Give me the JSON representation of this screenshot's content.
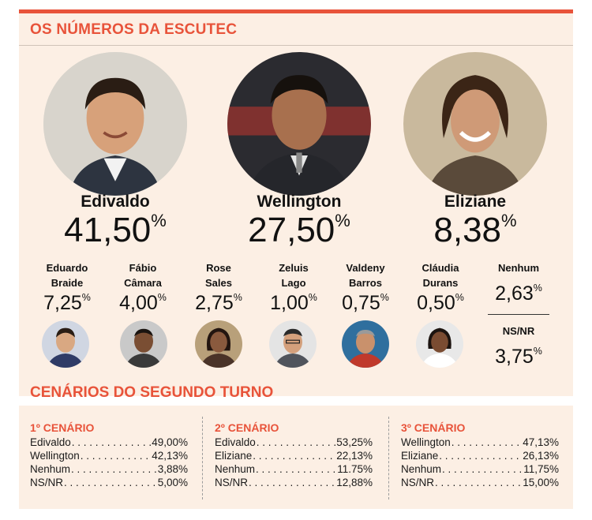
{
  "header": {
    "title": "OS NÚMEROS DA ESCUTEC"
  },
  "colors": {
    "accent": "#e8533a",
    "panel": "#fcefe4"
  },
  "main_candidates": [
    {
      "name": "Edivaldo",
      "value": "41,50",
      "unit": "%",
      "photo": "portrait-edivaldo"
    },
    {
      "name": "Wellington",
      "value": "27,50",
      "unit": "%",
      "photo": "portrait-wellington"
    },
    {
      "name": "Eliziane",
      "value": "8,38",
      "unit": "%",
      "photo": "portrait-eliziane"
    }
  ],
  "minor_candidates": [
    {
      "name1": "Eduardo",
      "name2": "Braide",
      "value": "7,25",
      "unit": "%"
    },
    {
      "name1": "Fábio",
      "name2": "Câmara",
      "value": "4,00",
      "unit": "%"
    },
    {
      "name1": "Rose",
      "name2": "Sales",
      "value": "2,75",
      "unit": "%"
    },
    {
      "name1": "Zeluis",
      "name2": "Lago",
      "value": "1,00",
      "unit": "%"
    },
    {
      "name1": "Valdeny",
      "name2": "Barros",
      "value": "0,75",
      "unit": "%"
    },
    {
      "name1": "Cláudia",
      "name2": "Durans",
      "value": "0,50",
      "unit": "%"
    }
  ],
  "nenhum": {
    "label": "Nenhum",
    "value": "2,63",
    "unit": "%"
  },
  "nsnr": {
    "label": "NS/NR",
    "value": "3,75",
    "unit": "%"
  },
  "second_round": {
    "title": "CENÁRIOS DO SEGUNDO TURNO",
    "scenarios": [
      {
        "heading": "1º CENÁRIO",
        "rows": [
          {
            "name": "Edivaldo",
            "value": "49,00%"
          },
          {
            "name": "Wellington",
            "value": "42,13%"
          },
          {
            "name": "Nenhum",
            "value": "3,88%"
          },
          {
            "name": "NS/NR",
            "value": "5,00%"
          }
        ]
      },
      {
        "heading": "2º CENÁRIO",
        "rows": [
          {
            "name": "Edivaldo",
            "value": "53,25%"
          },
          {
            "name": "Eliziane",
            "value": "22,13%"
          },
          {
            "name": "Nenhum",
            "value": "11.75%"
          },
          {
            "name": "NS/NR",
            "value": "12,88%"
          }
        ]
      },
      {
        "heading": "3º CENÁRIO",
        "rows": [
          {
            "name": "Wellington",
            "value": "47,13%"
          },
          {
            "name": "Eliziane",
            "value": "26,13%"
          },
          {
            "name": "Nenhum",
            "value": "11,75%"
          },
          {
            "name": "NS/NR",
            "value": "15,00%"
          }
        ]
      }
    ]
  }
}
